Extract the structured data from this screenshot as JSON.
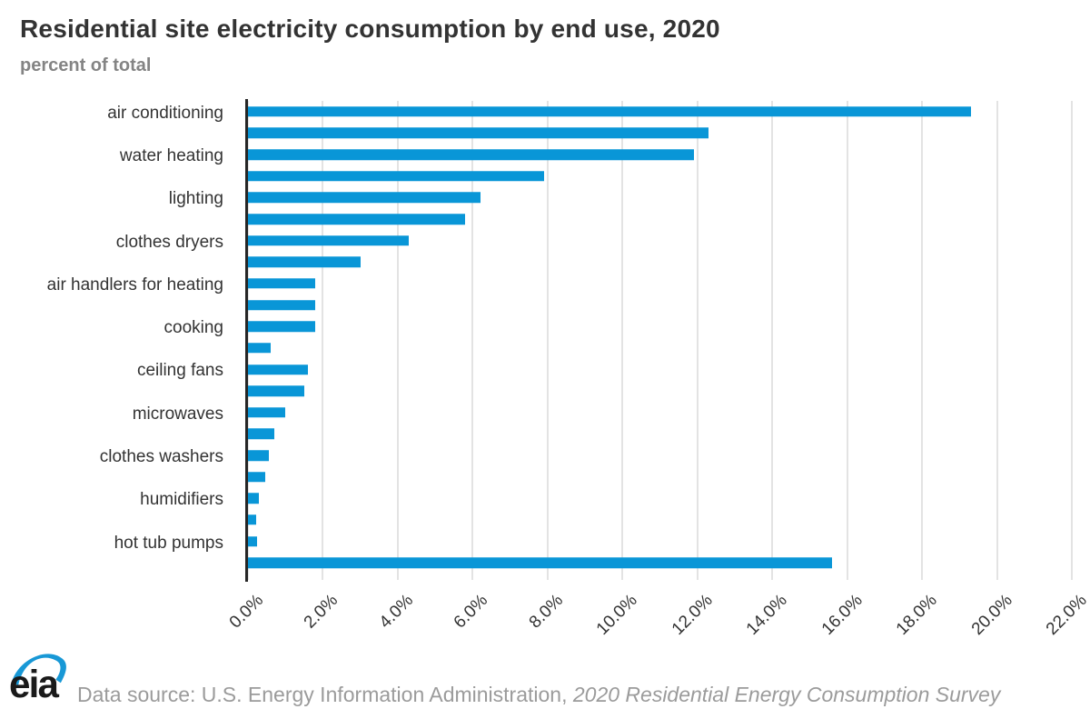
{
  "header": {
    "title": "Residential site electricity consumption by end use, 2020",
    "subtitle": "percent of total"
  },
  "chart_data": {
    "type": "bar",
    "orientation": "horizontal",
    "title": "Residential site electricity consumption by end use, 2020",
    "subtitle": "percent of total",
    "xlabel": "",
    "ylabel": "percent of total",
    "xlim": [
      0,
      22
    ],
    "grid": "vertical",
    "legend": "none",
    "bar_color": "#0996d7",
    "categories": [
      {
        "label": "air conditioning",
        "value": 19.3
      },
      {
        "label": "",
        "value": 12.3
      },
      {
        "label": "water heating",
        "value": 11.9
      },
      {
        "label": "",
        "value": 7.9
      },
      {
        "label": "lighting",
        "value": 6.2
      },
      {
        "label": "",
        "value": 5.8
      },
      {
        "label": "clothes dryers",
        "value": 4.3
      },
      {
        "label": "",
        "value": 3.0
      },
      {
        "label": "air handlers for heating",
        "value": 1.8
      },
      {
        "label": "",
        "value": 1.8
      },
      {
        "label": "cooking",
        "value": 1.8
      },
      {
        "label": "",
        "value": 0.6
      },
      {
        "label": "ceiling fans",
        "value": 1.6
      },
      {
        "label": "",
        "value": 1.5
      },
      {
        "label": "microwaves",
        "value": 1.0
      },
      {
        "label": "",
        "value": 0.7
      },
      {
        "label": "clothes washers",
        "value": 0.55
      },
      {
        "label": "",
        "value": 0.45
      },
      {
        "label": "humidifiers",
        "value": 0.3
      },
      {
        "label": "",
        "value": 0.22
      },
      {
        "label": "hot tub pumps",
        "value": 0.25
      },
      {
        "label": "",
        "value": 15.6
      }
    ],
    "x_ticks": {
      "values": [
        0,
        2,
        4,
        6,
        8,
        10,
        12,
        14,
        16,
        18,
        20,
        22
      ],
      "labels": [
        "0.0%",
        "2.0%",
        "4.0%",
        "6.0%",
        "8.0%",
        "10.0%",
        "12.0%",
        "14.0%",
        "16.0%",
        "18.0%",
        "20.0%",
        "22.0%"
      ]
    }
  },
  "footer": {
    "logo_text": "eia",
    "source_prefix": "Data source: U.S. Energy Information Administration, ",
    "source_italic": "2020 Residential Energy Consumption Survey"
  },
  "colors": {
    "accent": "#0996d7",
    "axis": "#262626",
    "grid": "#e3e3e3",
    "title_text": "#333333",
    "subtitle_text": "#848484",
    "footer_text": "#9b9b9b",
    "logo_blue": "#1898d6",
    "logo_black": "#1a1a1a"
  }
}
